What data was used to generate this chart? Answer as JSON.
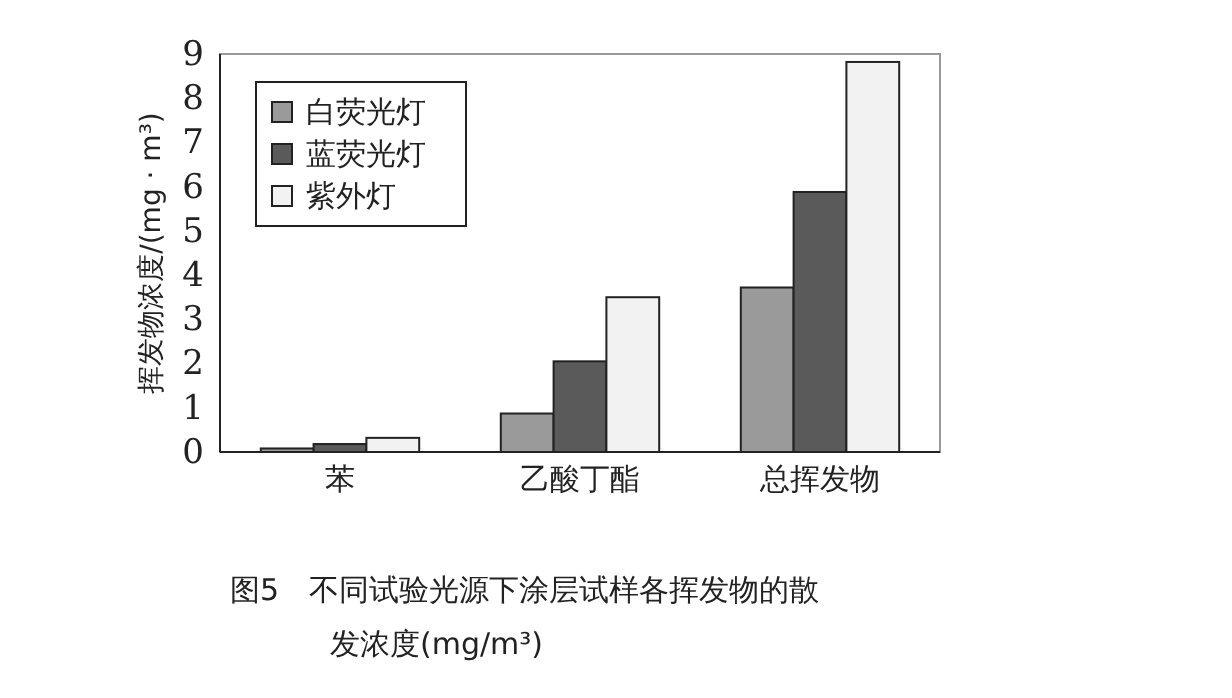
{
  "chart_data": {
    "type": "bar",
    "ylabel": "挥发物浓度/(mg · m³)",
    "categories": [
      "苯",
      "乙酸丁酯",
      "总挥发物"
    ],
    "series": [
      {
        "name": "白荧光灯",
        "color": "#9a9a9a",
        "values": [
          0.08,
          0.87,
          3.72
        ]
      },
      {
        "name": "蓝荧光灯",
        "color": "#5a5a5a",
        "values": [
          0.18,
          2.05,
          5.88
        ]
      },
      {
        "name": "紫外灯",
        "color": "#f2f2f2",
        "values": [
          0.32,
          3.5,
          8.82
        ]
      }
    ],
    "ylim": [
      0,
      9
    ],
    "yticks": [
      0,
      1,
      2,
      3,
      4,
      5,
      6,
      7,
      8,
      9
    ],
    "legend": "top left",
    "grid": false,
    "annotations": [
      "图5　不同试验光源下涂层试样各挥发物的散发浓度(mg/m³)"
    ]
  }
}
